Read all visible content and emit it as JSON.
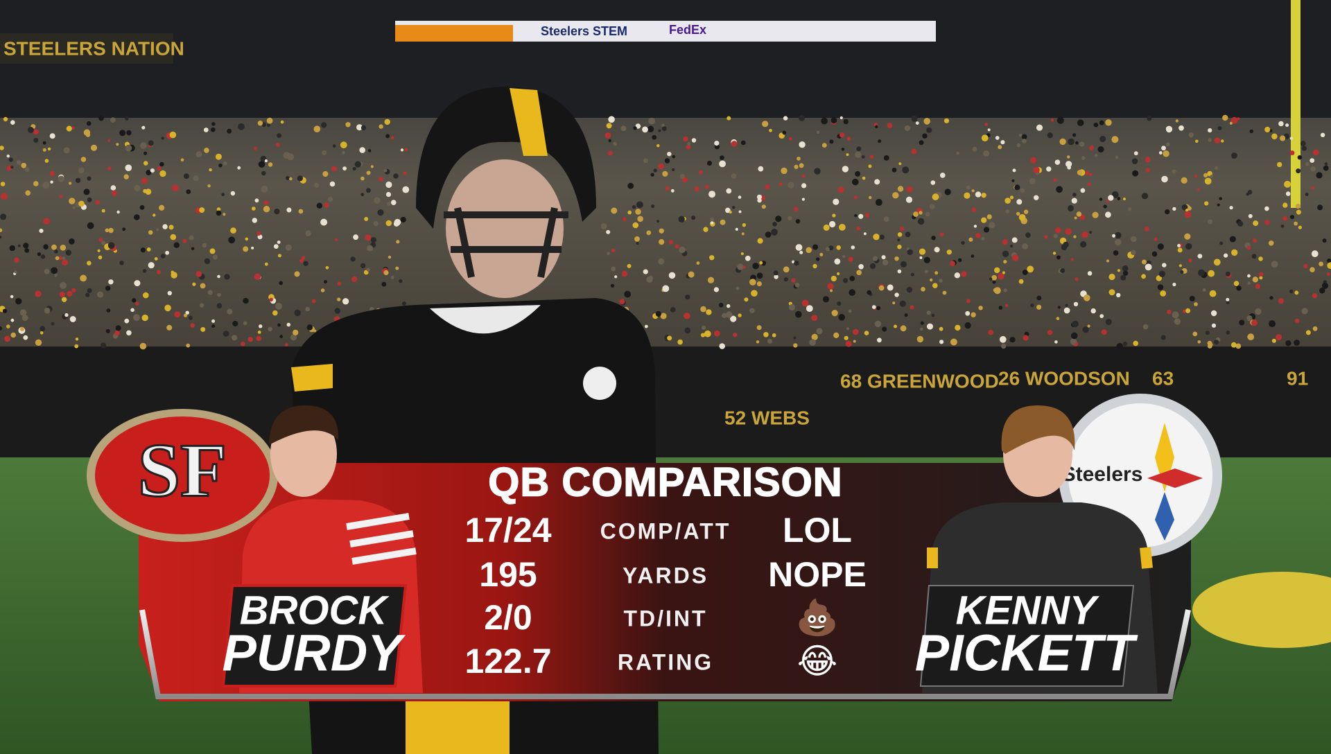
{
  "background": {
    "signs": [
      "STEELERS NATION",
      "Steelers STEM",
      "FedEx",
      "68 GREENWOOD",
      "26 WOODSON",
      "52 WEBS",
      "63",
      "91"
    ]
  },
  "graphic": {
    "title": "QB COMPARISON",
    "left_player": {
      "team": "SF",
      "first": "BROCK",
      "last": "PURDY"
    },
    "right_player": {
      "team": "Steelers",
      "first": "KENNY",
      "last": "PICKETT"
    },
    "rows": [
      {
        "left": "17/24",
        "label": "COMP/ATT",
        "right": "LOL"
      },
      {
        "left": 195,
        "label": "YARDS",
        "right": "NOPE"
      },
      {
        "left": "2/0",
        "label": "TD/INT",
        "right": "💩"
      },
      {
        "left": 122.7,
        "label": "RATING",
        "right": "😂"
      }
    ]
  }
}
